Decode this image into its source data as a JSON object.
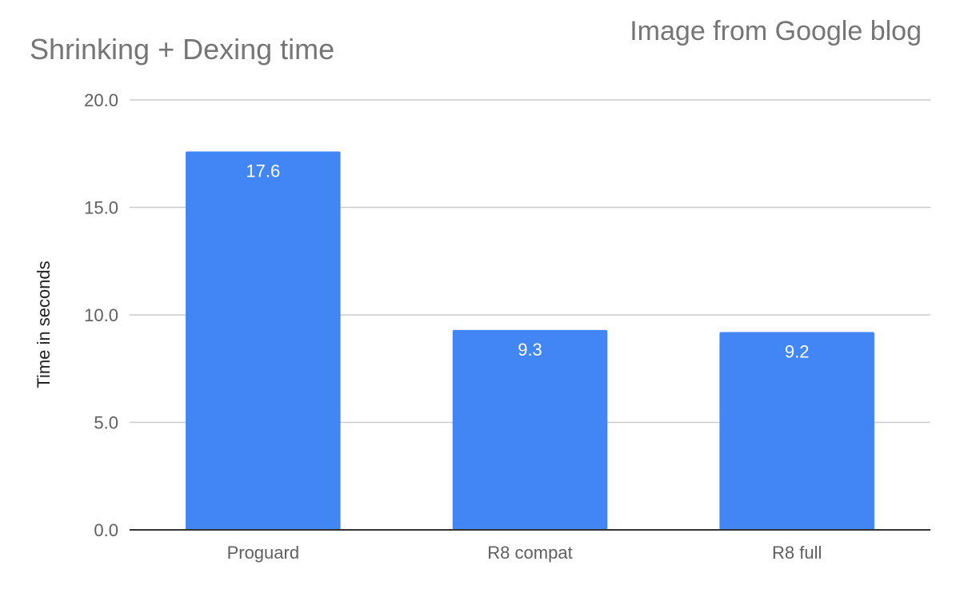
{
  "chart_data": {
    "type": "bar",
    "title": "Shrinking + Dexing time",
    "source_note": "Image from Google blog",
    "xlabel": "",
    "ylabel": "Time in seconds",
    "ylim": [
      0,
      20
    ],
    "yticks": [
      0,
      5,
      10,
      15,
      20
    ],
    "ytick_labels": [
      "0.0",
      "5.0",
      "10.0",
      "15.0",
      "20.0"
    ],
    "categories": [
      "Proguard",
      "R8 compat",
      "R8 full"
    ],
    "values": [
      17.6,
      9.3,
      9.2
    ],
    "data_labels": [
      "17.6",
      "9.3",
      "9.2"
    ],
    "grid": true,
    "legend": "none",
    "colors": {
      "bar": "#4285f4",
      "grid": "#cccccc",
      "axis": "#333333"
    }
  }
}
